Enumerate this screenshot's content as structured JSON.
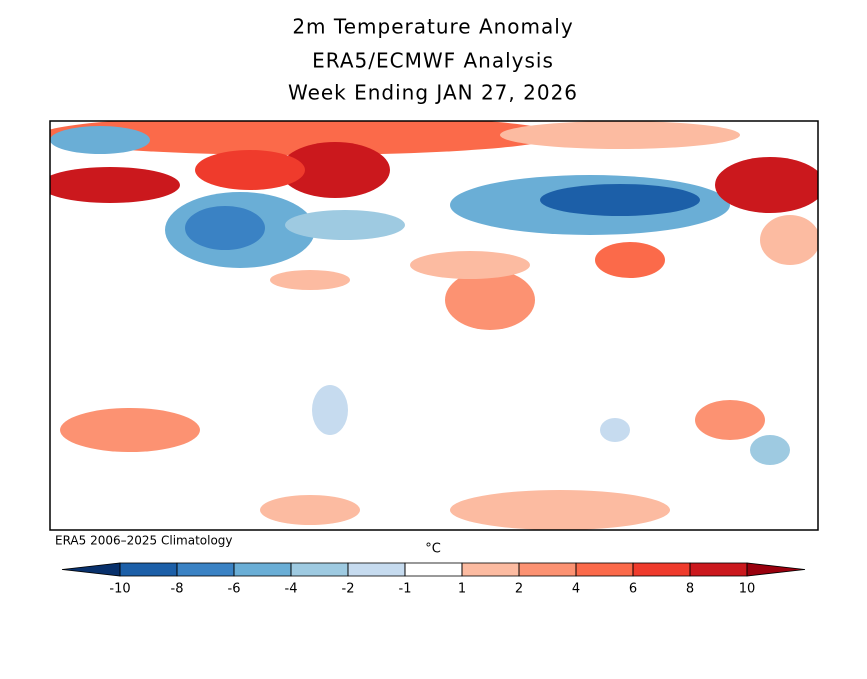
{
  "header": {
    "title": "2m Temperature Anomaly",
    "subtitle": "ERA5/ECMWF Analysis",
    "period": "Week Ending JAN 27, 2026"
  },
  "map": {
    "note": "ERA5 2006–2025 Climatology"
  },
  "colorbar": {
    "unit": "°C",
    "ticks": [
      -10,
      -8,
      -6,
      -4,
      -2,
      -1,
      1,
      2,
      4,
      6,
      8,
      10
    ],
    "colors": [
      "#08306b",
      "#1c5fa8",
      "#3a82c4",
      "#6aaed6",
      "#9ecae1",
      "#c6dbef",
      "#ffffff",
      "#fcbba1",
      "#fc9272",
      "#fb6a4a",
      "#ef3b2c",
      "#cb181d",
      "#99000d"
    ]
  }
}
